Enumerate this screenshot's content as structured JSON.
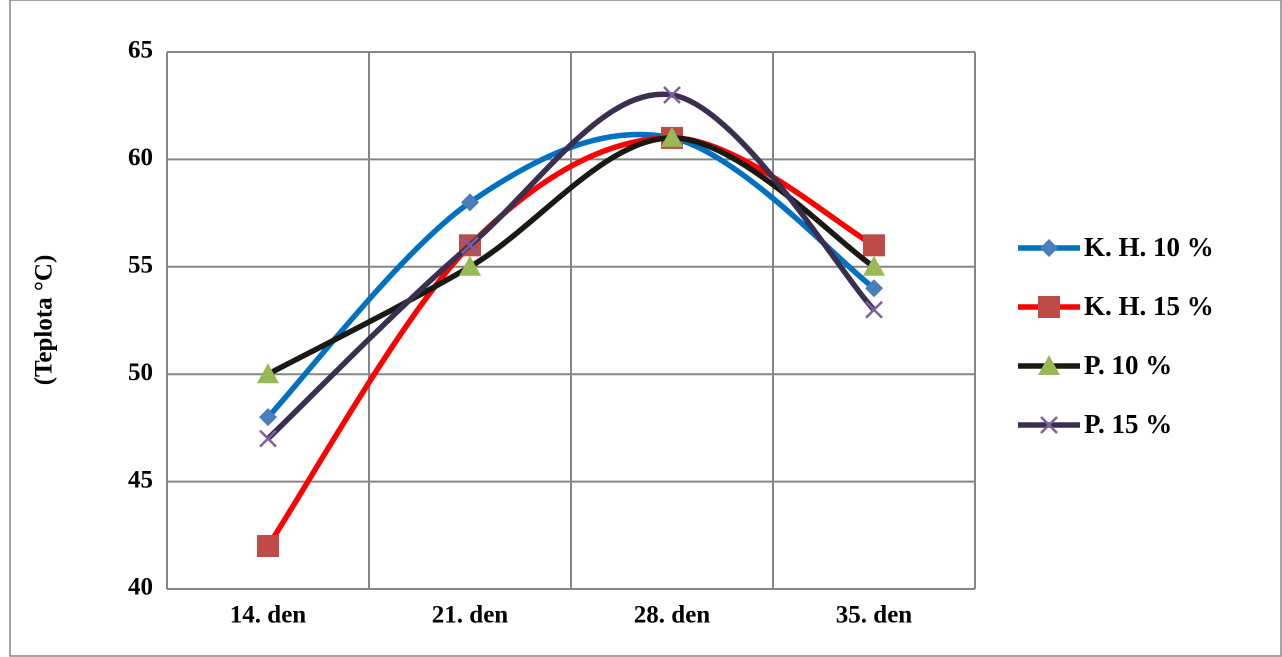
{
  "chart_data": {
    "type": "line",
    "smooth": true,
    "y_label": "(Teplota °C)",
    "categories": [
      "14. den",
      "21. den",
      "28. den",
      "35. den"
    ],
    "series": [
      {
        "name": "K. H. 10 %",
        "color": "#0070c0",
        "marker_color": "#4a7ebb",
        "marker": "diamond",
        "values": [
          48,
          58,
          61,
          54
        ]
      },
      {
        "name": "K. H. 15 %",
        "color": "#ff0000",
        "marker_color": "#be4b48",
        "marker": "square",
        "values": [
          42,
          56,
          61,
          56
        ]
      },
      {
        "name": "P. 10 %",
        "color": "#1a1a14",
        "marker_color": "#98b954",
        "marker": "triangle",
        "values": [
          50,
          55,
          61,
          55
        ]
      },
      {
        "name": "P. 15 %",
        "color": "#3b2f4f",
        "marker_color": "#7d60a0",
        "marker": "x",
        "values": [
          47,
          56,
          63,
          53
        ]
      }
    ],
    "ylim": [
      40,
      65
    ],
    "yticks": [
      40,
      45,
      50,
      55,
      60,
      65
    ],
    "grid": true,
    "legend": "right"
  }
}
